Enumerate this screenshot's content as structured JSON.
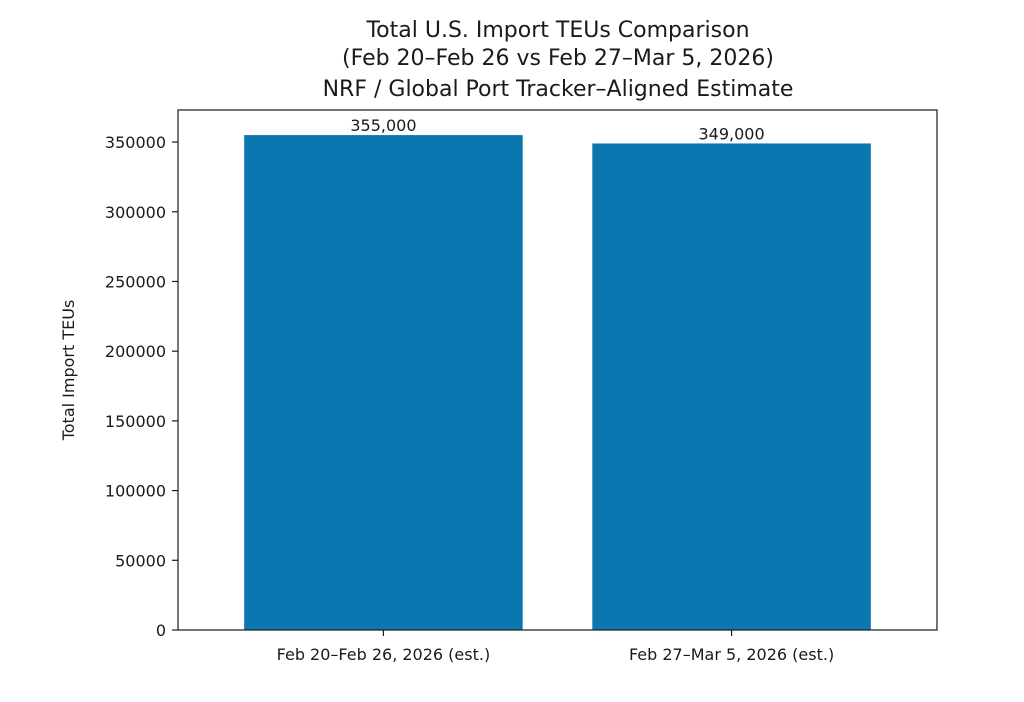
{
  "chart_data": {
    "type": "bar",
    "title": [
      "Total U.S. Import TEUs Comparison",
      "(Feb 20–Feb 26 vs Feb 27–Mar 5, 2026)",
      "NRF / Global Port Tracker–Aligned Estimate"
    ],
    "xlabel": "",
    "ylabel": "Total Import TEUs",
    "categories": [
      "Feb 20–Feb 26, 2026 (est.)",
      "Feb 27–Mar 5, 2026 (est.)"
    ],
    "values": [
      355000,
      349000
    ],
    "data_labels": [
      "355,000",
      "349,000"
    ],
    "ylim": [
      0,
      373000
    ],
    "yticks": [
      0,
      50000,
      100000,
      150000,
      200000,
      250000,
      300000,
      350000
    ],
    "ytick_labels": [
      "0",
      "50000",
      "100000",
      "150000",
      "200000",
      "250000",
      "300000",
      "350000"
    ],
    "bar_color": "#0b77b0",
    "grid": false,
    "legend": "none"
  }
}
